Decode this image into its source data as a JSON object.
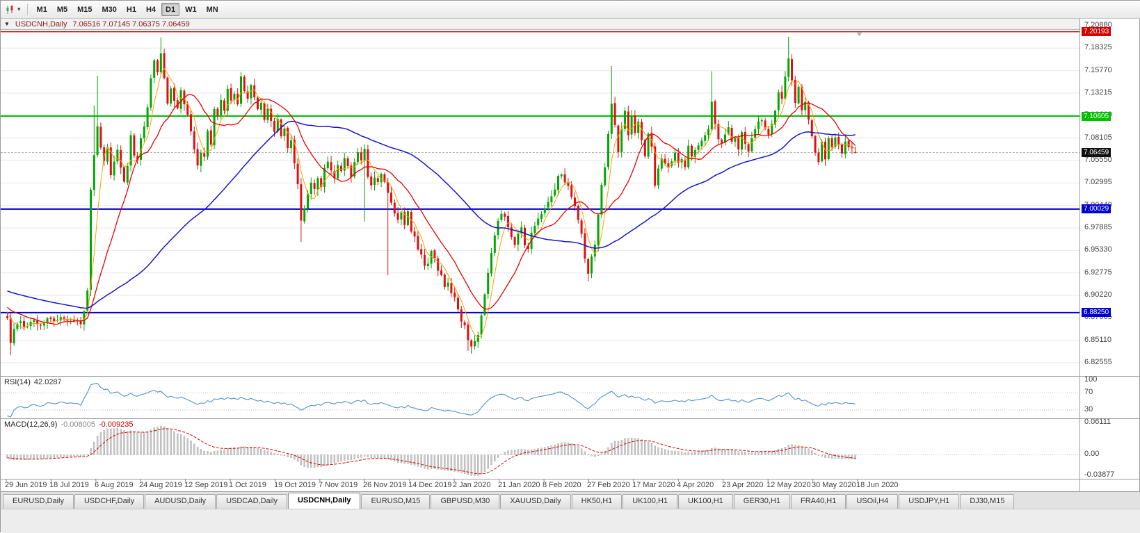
{
  "toolbar": {
    "caret": "▾",
    "timeframes": [
      {
        "label": "M1",
        "active": false
      },
      {
        "label": "M5",
        "active": false
      },
      {
        "label": "M15",
        "active": false
      },
      {
        "label": "M30",
        "active": false
      },
      {
        "label": "H1",
        "active": false
      },
      {
        "label": "H4",
        "active": false
      },
      {
        "label": "D1",
        "active": true
      },
      {
        "label": "W1",
        "active": false
      },
      {
        "label": "MN",
        "active": false
      }
    ]
  },
  "caption": {
    "menu_icon": "▼",
    "symbol_title": "USDCNH,Daily",
    "ohlc": "7.06516 7.07145 7.06375 7.06459"
  },
  "price_axis": {
    "max": 7.2088,
    "min": 6.82555,
    "ticks": [
      "7.20880",
      "7.18325",
      "7.15770",
      "7.13215",
      "7.10660",
      "7.08105",
      "7.05550",
      "7.02995",
      "7.00440",
      "6.97885",
      "6.95330",
      "6.92775",
      "6.90220",
      "6.87665",
      "6.85110",
      "6.82555"
    ]
  },
  "levels": [
    {
      "price": 7.20193,
      "label": "7.20193",
      "color": "#d40000",
      "width": 1.4
    },
    {
      "price": 7.10605,
      "label": "7.10605",
      "color": "#00c000",
      "width": 2
    },
    {
      "price": 7.00029,
      "label": "7.00029",
      "color": "#0000d0",
      "width": 2
    },
    {
      "price": 6.8825,
      "label": "6.88250",
      "color": "#0000d0",
      "width": 2
    }
  ],
  "current_price": {
    "value": 7.06459,
    "label": "7.06459",
    "badge_color": "#111111"
  },
  "rsi": {
    "title": "RSI(14)",
    "value": "42.0287",
    "line_color": "#4f94cd",
    "levels": [
      100,
      70,
      30
    ]
  },
  "macd": {
    "title": "MACD(12,26,9)",
    "value_main": "-0.008005",
    "value_signal": "-0.009235",
    "axis_labels": [
      "0.06111",
      "0.00",
      "-0.03877"
    ],
    "axis_max": 0.06111,
    "axis_min": -0.03877,
    "hist_color": "#c9c9c9",
    "signal_color": "#d40000"
  },
  "date_axis": [
    "29 Jun 2019",
    "18 Jul 2019",
    "6 Aug 2019",
    "24 Aug 2019",
    "12 Sep 2019",
    "1 Oct 2019",
    "19 Oct 2019",
    "7 Nov 2019",
    "26 Nov 2019",
    "14 Dec 2019",
    "2 Jan 2020",
    "21 Jan 2020",
    "8 Feb 2020",
    "27 Feb 2020",
    "17 Mar 2020",
    "4 Apr 2020",
    "23 Apr 2020",
    "12 May 2020",
    "30 May 2020",
    "18 Jun 2020"
  ],
  "tabs": [
    {
      "label": "EURUSD,Daily",
      "active": false
    },
    {
      "label": "USDCHF,Daily",
      "active": false
    },
    {
      "label": "AUDUSD,Daily",
      "active": false
    },
    {
      "label": "USDCAD,Daily",
      "active": false
    },
    {
      "label": "USDCNH,Daily",
      "active": true
    },
    {
      "label": "EURUSD,M15",
      "active": false
    },
    {
      "label": "GBPUSD,M30",
      "active": false
    },
    {
      "label": "XAUUSD,Daily",
      "active": false
    },
    {
      "label": "HK50,H1",
      "active": false
    },
    {
      "label": "UK100,H1",
      "active": false
    },
    {
      "label": "UK100,H1",
      "active": false
    },
    {
      "label": "GER30,H1",
      "active": false
    },
    {
      "label": "FRA40,H1",
      "active": false
    },
    {
      "label": "USOil,H4",
      "active": false
    },
    {
      "label": "USDJPY,H1",
      "active": false
    },
    {
      "label": "DJ30,M15",
      "active": false
    }
  ],
  "chart_data": {
    "type": "candlestick",
    "symbol": "USDCNH",
    "timeframe": "Daily",
    "bars": 255,
    "last_bar": {
      "o": 7.06516,
      "h": 7.07145,
      "l": 7.06375,
      "c": 7.06459
    },
    "style": {
      "up": "#00a800",
      "down": "#e01010",
      "grid": "#e7e7e7",
      "bg": "#ffffff"
    },
    "moving_averages": [
      {
        "period": 5,
        "color": "#ffa000",
        "width": 1
      },
      {
        "period": 15,
        "color": "#e80000",
        "width": 1.3
      },
      {
        "period": 60,
        "color": "#1515c8",
        "width": 1.5
      }
    ],
    "warmup": {
      "bars": 60,
      "from": 6.932,
      "to": 6.884
    },
    "anchors": [
      [
        0,
        6.878
      ],
      [
        1,
        6.846
      ],
      [
        2,
        6.862
      ],
      [
        4,
        6.872
      ],
      [
        6,
        6.866
      ],
      [
        8,
        6.874
      ],
      [
        10,
        6.869
      ],
      [
        12,
        6.876
      ],
      [
        14,
        6.87
      ],
      [
        16,
        6.877
      ],
      [
        18,
        6.871
      ],
      [
        20,
        6.875
      ],
      [
        22,
        6.87
      ],
      [
        23,
        6.882
      ],
      [
        24,
        6.905
      ],
      [
        25,
        7.02
      ],
      [
        26,
        7.062
      ],
      [
        27,
        7.095
      ],
      [
        28,
        7.068
      ],
      [
        29,
        7.056
      ],
      [
        30,
        7.072
      ],
      [
        31,
        7.04
      ],
      [
        32,
        7.056
      ],
      [
        33,
        7.068
      ],
      [
        34,
        7.048
      ],
      [
        35,
        7.03
      ],
      [
        36,
        7.052
      ],
      [
        37,
        7.082
      ],
      [
        38,
        7.064
      ],
      [
        39,
        7.057
      ],
      [
        40,
        7.08
      ],
      [
        41,
        7.092
      ],
      [
        42,
        7.118
      ],
      [
        43,
        7.152
      ],
      [
        44,
        7.172
      ],
      [
        45,
        7.158
      ],
      [
        46,
        7.178
      ],
      [
        47,
        7.152
      ],
      [
        48,
        7.118
      ],
      [
        49,
        7.14
      ],
      [
        50,
        7.126
      ],
      [
        51,
        7.117
      ],
      [
        52,
        7.136
      ],
      [
        53,
        7.12
      ],
      [
        54,
        7.107
      ],
      [
        55,
        7.088
      ],
      [
        56,
        7.071
      ],
      [
        57,
        7.052
      ],
      [
        58,
        7.067
      ],
      [
        59,
        7.059
      ],
      [
        60,
        7.088
      ],
      [
        61,
        7.075
      ],
      [
        62,
        7.117
      ],
      [
        63,
        7.107
      ],
      [
        64,
        7.127
      ],
      [
        65,
        7.112
      ],
      [
        66,
        7.139
      ],
      [
        67,
        7.125
      ],
      [
        68,
        7.132
      ],
      [
        69,
        7.12
      ],
      [
        70,
        7.149
      ],
      [
        71,
        7.137
      ],
      [
        72,
        7.124
      ],
      [
        73,
        7.139
      ],
      [
        74,
        7.127
      ],
      [
        75,
        7.111
      ],
      [
        76,
        7.12
      ],
      [
        77,
        7.102
      ],
      [
        78,
        7.117
      ],
      [
        79,
        7.098
      ],
      [
        80,
        7.091
      ],
      [
        81,
        7.105
      ],
      [
        82,
        7.086
      ],
      [
        83,
        7.094
      ],
      [
        84,
        7.068
      ],
      [
        85,
        7.079
      ],
      [
        86,
        7.051
      ],
      [
        87,
        7.027
      ],
      [
        88,
        6.985
      ],
      [
        89,
        7.002
      ],
      [
        90,
        7.017
      ],
      [
        91,
        7.031
      ],
      [
        92,
        7.021
      ],
      [
        93,
        7.037
      ],
      [
        94,
        7.027
      ],
      [
        95,
        7.044
      ],
      [
        96,
        7.057
      ],
      [
        97,
        7.047
      ],
      [
        98,
        7.035
      ],
      [
        99,
        7.051
      ],
      [
        100,
        7.041
      ],
      [
        101,
        7.057
      ],
      [
        102,
        7.047
      ],
      [
        103,
        7.039
      ],
      [
        104,
        7.054
      ],
      [
        105,
        7.067
      ],
      [
        106,
        7.057
      ],
      [
        107,
        7.071
      ],
      [
        108,
        7.039
      ],
      [
        109,
        7.027
      ],
      [
        110,
        7.039
      ],
      [
        111,
        7.031
      ],
      [
        112,
        7.041
      ],
      [
        113,
        7.029
      ],
      [
        114,
        7.021
      ],
      [
        115,
        7.009
      ],
      [
        116,
        6.997
      ],
      [
        117,
        6.987
      ],
      [
        118,
        6.995
      ],
      [
        119,
        6.984
      ],
      [
        120,
        6.995
      ],
      [
        121,
        6.977
      ],
      [
        122,
        6.969
      ],
      [
        123,
        6.957
      ],
      [
        124,
        6.947
      ],
      [
        125,
        6.937
      ],
      [
        126,
        6.941
      ],
      [
        127,
        6.951
      ],
      [
        128,
        6.943
      ],
      [
        129,
        6.931
      ],
      [
        130,
        6.924
      ],
      [
        131,
        6.914
      ],
      [
        132,
        6.917
      ],
      [
        133,
        6.907
      ],
      [
        134,
        6.899
      ],
      [
        135,
        6.884
      ],
      [
        136,
        6.874
      ],
      [
        137,
        6.867
      ],
      [
        138,
        6.851
      ],
      [
        139,
        6.847
      ],
      [
        140,
        6.851
      ],
      [
        141,
        6.859
      ],
      [
        142,
        6.877
      ],
      [
        143,
        6.901
      ],
      [
        144,
        6.927
      ],
      [
        145,
        6.951
      ],
      [
        146,
        6.971
      ],
      [
        147,
        6.987
      ],
      [
        148,
        6.995
      ],
      [
        149,
        6.989
      ],
      [
        150,
        6.981
      ],
      [
        151,
        6.969
      ],
      [
        152,
        6.961
      ],
      [
        153,
        6.971
      ],
      [
        154,
        6.977
      ],
      [
        155,
        6.961
      ],
      [
        156,
        6.957
      ],
      [
        157,
        6.971
      ],
      [
        158,
        6.979
      ],
      [
        159,
        6.987
      ],
      [
        160,
        6.995
      ],
      [
        161,
        7.001
      ],
      [
        162,
        7.007
      ],
      [
        163,
        7.017
      ],
      [
        164,
        7.025
      ],
      [
        165,
        7.037
      ],
      [
        166,
        7.041
      ],
      [
        167,
        7.031
      ],
      [
        168,
        7.025
      ],
      [
        169,
        7.011
      ],
      [
        170,
        7.001
      ],
      [
        171,
        6.987
      ],
      [
        172,
        6.971
      ],
      [
        173,
        6.944
      ],
      [
        174,
        6.929
      ],
      [
        175,
        6.944
      ],
      [
        176,
        6.961
      ],
      [
        177,
        6.994
      ],
      [
        178,
        7.027
      ],
      [
        179,
        7.049
      ],
      [
        180,
        7.087
      ],
      [
        181,
        7.121
      ],
      [
        182,
        7.094
      ],
      [
        183,
        7.067
      ],
      [
        184,
        7.091
      ],
      [
        185,
        7.114
      ],
      [
        186,
        7.087
      ],
      [
        187,
        7.104
      ],
      [
        188,
        7.084
      ],
      [
        189,
        7.097
      ],
      [
        190,
        7.077
      ],
      [
        191,
        7.061
      ],
      [
        192,
        7.087
      ],
      [
        193,
        7.071
      ],
      [
        194,
        7.027
      ],
      [
        195,
        7.044
      ],
      [
        196,
        7.061
      ],
      [
        197,
        7.051
      ],
      [
        198,
        7.047
      ],
      [
        199,
        7.057
      ],
      [
        200,
        7.064
      ],
      [
        201,
        7.054
      ],
      [
        202,
        7.059
      ],
      [
        203,
        7.051
      ],
      [
        204,
        7.071
      ],
      [
        205,
        7.061
      ],
      [
        206,
        7.067
      ],
      [
        207,
        7.074
      ],
      [
        208,
        7.081
      ],
      [
        209,
        7.087
      ],
      [
        210,
        7.094
      ],
      [
        211,
        7.121
      ],
      [
        212,
        7.097
      ],
      [
        213,
        7.081
      ],
      [
        214,
        7.074
      ],
      [
        215,
        7.087
      ],
      [
        216,
        7.091
      ],
      [
        217,
        7.077
      ],
      [
        218,
        7.081
      ],
      [
        219,
        7.071
      ],
      [
        220,
        7.087
      ],
      [
        221,
        7.077
      ],
      [
        222,
        7.067
      ],
      [
        223,
        7.079
      ],
      [
        224,
        7.089
      ],
      [
        225,
        7.097
      ],
      [
        226,
        7.101
      ],
      [
        227,
        7.091
      ],
      [
        228,
        7.084
      ],
      [
        229,
        7.094
      ],
      [
        230,
        7.109
      ],
      [
        231,
        7.134
      ],
      [
        232,
        7.124
      ],
      [
        233,
        7.149
      ],
      [
        234,
        7.169
      ],
      [
        235,
        7.145
      ],
      [
        236,
        7.119
      ],
      [
        237,
        7.137
      ],
      [
        238,
        7.114
      ],
      [
        239,
        7.124
      ],
      [
        240,
        7.099
      ],
      [
        241,
        7.084
      ],
      [
        242,
        7.065
      ],
      [
        243,
        7.055
      ],
      [
        244,
        7.074
      ],
      [
        245,
        7.059
      ],
      [
        246,
        7.079
      ],
      [
        247,
        7.069
      ],
      [
        248,
        7.083
      ],
      [
        249,
        7.075
      ],
      [
        250,
        7.065
      ],
      [
        251,
        7.079
      ],
      [
        252,
        7.073
      ],
      [
        253,
        7.067
      ],
      [
        254,
        7.0646
      ]
    ],
    "wick_overrides": [
      [
        1,
        "low",
        6.834
      ],
      [
        26,
        "high",
        7.118
      ],
      [
        27,
        "high",
        7.152
      ],
      [
        46,
        "high",
        7.1955
      ],
      [
        88,
        "low",
        6.963
      ],
      [
        107,
        "low",
        6.986
      ],
      [
        114,
        "low",
        6.925
      ],
      [
        138,
        "low",
        6.839
      ],
      [
        139,
        "low",
        6.836
      ],
      [
        174,
        "low",
        6.918
      ],
      [
        181,
        "high",
        7.163
      ],
      [
        211,
        "high",
        7.157
      ],
      [
        234,
        "high",
        7.1962
      ]
    ]
  }
}
